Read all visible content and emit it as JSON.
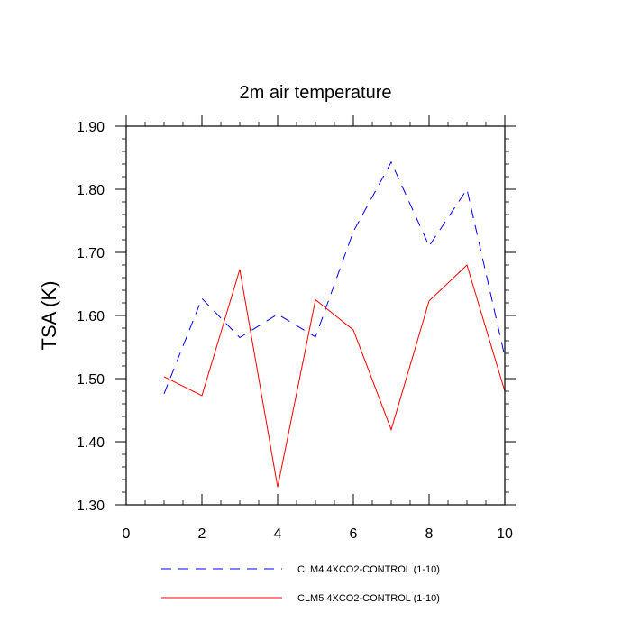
{
  "chart_data": {
    "type": "line",
    "title": "2m air temperature",
    "xlabel": "",
    "ylabel": "TSA  (K)",
    "xlim": [
      0,
      10
    ],
    "ylim": [
      1.3,
      1.9
    ],
    "x_ticks": [
      "0",
      "2",
      "4",
      "6",
      "8",
      "10"
    ],
    "y_ticks": [
      "1.30",
      "1.40",
      "1.50",
      "1.60",
      "1.70",
      "1.80",
      "1.90"
    ],
    "x_tick_values": [
      0,
      2,
      4,
      6,
      8,
      10
    ],
    "y_tick_values": [
      1.3,
      1.4,
      1.5,
      1.6,
      1.7,
      1.8,
      1.9
    ],
    "grid": false,
    "legend_position": "bottom",
    "x": [
      1,
      2,
      3,
      4,
      5,
      6,
      7,
      8,
      9,
      10
    ],
    "series": [
      {
        "name": "CLM4 4XCO2-CONTROL (1-10)",
        "color": "#0000ff",
        "line_style": "dashed",
        "values": [
          1.476,
          1.627,
          1.565,
          1.602,
          1.566,
          1.733,
          1.843,
          1.71,
          1.8,
          1.535
        ]
      },
      {
        "name": "CLM5 4XCO2-CONTROL (1-10)",
        "color": "#ff0000",
        "line_style": "solid",
        "values": [
          1.503,
          1.473,
          1.673,
          1.328,
          1.625,
          1.577,
          1.419,
          1.623,
          1.68,
          1.48
        ]
      }
    ]
  }
}
